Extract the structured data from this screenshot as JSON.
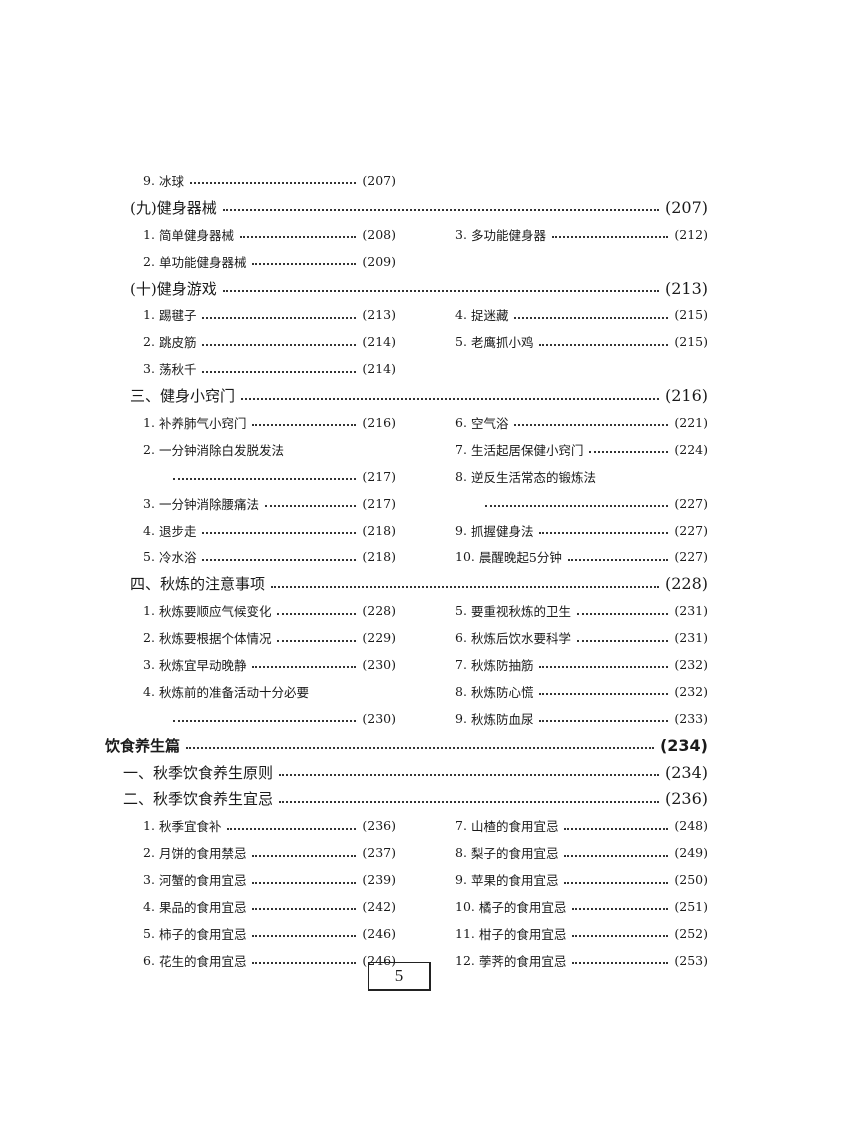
{
  "rows": [
    {
      "type": "pair",
      "left": {
        "num": "9.",
        "title": "冰球",
        "page": "(207)"
      }
    },
    {
      "type": "heading",
      "title": "(九)健身器械",
      "page": "(207)"
    },
    {
      "type": "pair",
      "left": {
        "num": "1.",
        "title": "简单健身器械",
        "page": "(208)"
      },
      "right": {
        "num": "3.",
        "title": "多功能健身器",
        "page": "(212)"
      }
    },
    {
      "type": "pair",
      "left": {
        "num": "2.",
        "title": "单功能健身器械",
        "page": "(209)"
      }
    },
    {
      "type": "heading",
      "title": "(十)健身游戏",
      "page": "(213)"
    },
    {
      "type": "pair",
      "left": {
        "num": "1.",
        "title": "踢毽子",
        "page": "(213)"
      },
      "right": {
        "num": "4.",
        "title": "捉迷藏",
        "page": "(215)"
      }
    },
    {
      "type": "pair",
      "left": {
        "num": "2.",
        "title": "跳皮筋",
        "page": "(214)"
      },
      "right": {
        "num": "5.",
        "title": "老鹰抓小鸡",
        "page": "(215)"
      }
    },
    {
      "type": "pair",
      "left": {
        "num": "3.",
        "title": "荡秋千",
        "page": "(214)"
      }
    },
    {
      "type": "heading",
      "title": "三、健身小窍门",
      "page": "(216)"
    },
    {
      "type": "pair",
      "left": {
        "num": "1.",
        "title": "补养肺气小窍门",
        "page": "(216)"
      },
      "right": {
        "num": "6.",
        "title": "空气浴",
        "page": "(221)"
      }
    },
    {
      "type": "pair",
      "left": {
        "num": "2.",
        "title": "一分钟消除白发脱发法"
      },
      "right": {
        "num": "7.",
        "title": "生活起居保健小窍门",
        "page": "(224)"
      }
    },
    {
      "type": "pair",
      "left": {
        "page": "(217)"
      },
      "right": {
        "num": "8.",
        "title": "逆反生活常态的锻炼法"
      }
    },
    {
      "type": "pair",
      "left": {
        "num": "3.",
        "title": "一分钟消除腰痛法",
        "page": "(217)"
      },
      "right": {
        "page": "(227)"
      }
    },
    {
      "type": "pair",
      "left": {
        "num": "4.",
        "title": "退步走",
        "page": "(218)"
      },
      "right": {
        "num": "9.",
        "title": "抓握健身法",
        "page": "(227)"
      }
    },
    {
      "type": "pair",
      "left": {
        "num": "5.",
        "title": "冷水浴",
        "page": "(218)"
      },
      "right": {
        "num": "10.",
        "title": "晨醒晚起5分钟",
        "page": "(227)"
      }
    },
    {
      "type": "heading",
      "title": "四、秋炼的注意事项",
      "page": "(228)"
    },
    {
      "type": "pair",
      "left": {
        "num": "1.",
        "title": "秋炼要顺应气候变化",
        "page": "(228)"
      },
      "right": {
        "num": "5.",
        "title": "要重视秋炼的卫生",
        "page": "(231)"
      }
    },
    {
      "type": "pair",
      "left": {
        "num": "2.",
        "title": "秋炼要根据个体情况",
        "page": "(229)"
      },
      "right": {
        "num": "6.",
        "title": "秋炼后饮水要科学",
        "page": "(231)"
      }
    },
    {
      "type": "pair",
      "left": {
        "num": "3.",
        "title": "秋炼宜早动晚静",
        "page": "(230)"
      },
      "right": {
        "num": "7.",
        "title": "秋炼防抽筋",
        "page": "(232)"
      }
    },
    {
      "type": "pair",
      "left": {
        "num": "4.",
        "title": "秋炼前的准备活动十分必要"
      },
      "right": {
        "num": "8.",
        "title": "秋炼防心慌",
        "page": "(232)"
      }
    },
    {
      "type": "pair",
      "left": {
        "page": "(230)"
      },
      "right": {
        "num": "9.",
        "title": "秋炼防血尿",
        "page": "(233)"
      }
    },
    {
      "type": "part",
      "title": "饮食养生篇",
      "page": "(234)"
    },
    {
      "type": "sub",
      "title": "一、秋季饮食养生原则",
      "page": "(234)"
    },
    {
      "type": "sub",
      "title": "二、秋季饮食养生宜忌",
      "page": "(236)"
    },
    {
      "type": "pair",
      "left": {
        "num": "1.",
        "title": "秋季宜食补",
        "page": "(236)"
      },
      "right": {
        "num": "7.",
        "title": "山楂的食用宜忌",
        "page": "(248)"
      }
    },
    {
      "type": "pair",
      "left": {
        "num": "2.",
        "title": "月饼的食用禁忌",
        "page": "(237)"
      },
      "right": {
        "num": "8.",
        "title": "梨子的食用宜忌",
        "page": "(249)"
      }
    },
    {
      "type": "pair",
      "left": {
        "num": "3.",
        "title": "河蟹的食用宜忌",
        "page": "(239)"
      },
      "right": {
        "num": "9.",
        "title": "苹果的食用宜忌",
        "page": "(250)"
      }
    },
    {
      "type": "pair",
      "left": {
        "num": "4.",
        "title": "果品的食用宜忌",
        "page": "(242)"
      },
      "right": {
        "num": "10.",
        "title": "橘子的食用宜忌",
        "page": "(251)"
      }
    },
    {
      "type": "pair",
      "left": {
        "num": "5.",
        "title": "柿子的食用宜忌",
        "page": "(246)"
      },
      "right": {
        "num": "11.",
        "title": "柑子的食用宜忌",
        "page": "(252)"
      }
    },
    {
      "type": "pair",
      "left": {
        "num": "6.",
        "title": "花生的食用宜忌",
        "page": "(246)"
      },
      "right": {
        "num": "12.",
        "title": "荸荠的食用宜忌",
        "page": "(253)"
      }
    }
  ],
  "footer": {
    "page_number": "5"
  }
}
